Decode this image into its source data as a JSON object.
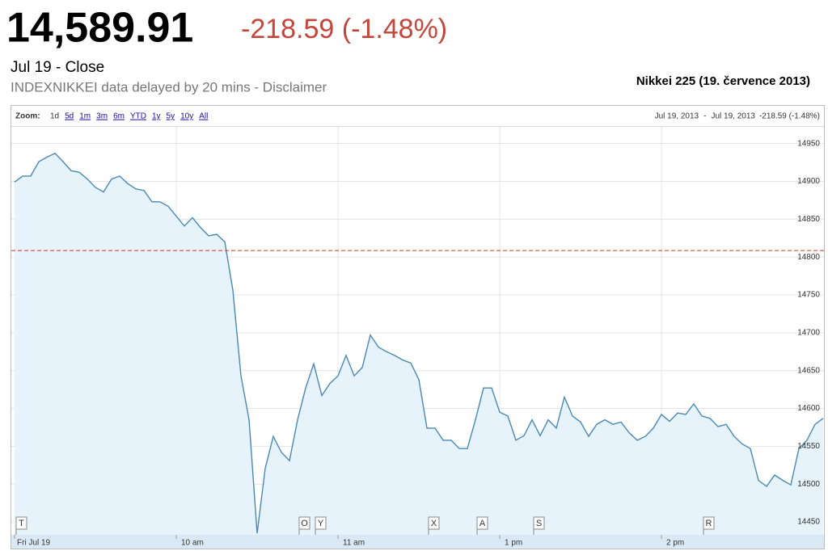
{
  "quote": {
    "price": "14,589.91",
    "change": "-218.59 (-1.48%)",
    "date": "Jul 19 - Close",
    "delay": "INDEXNIKKEI data delayed by 20 mins - Disclaimer",
    "title": "Nikkei 225 (19. července 2013)"
  },
  "chart_data": {
    "type": "area",
    "zoom": {
      "label": "Zoom:",
      "options": [
        "1d",
        "5d",
        "1m",
        "3m",
        "6m",
        "YTD",
        "1y",
        "5y",
        "10y",
        "All"
      ]
    },
    "range": {
      "from": "Jul 19, 2013",
      "separator": "-",
      "to": "Jul 19, 2013",
      "change": "-218.59 (-1.48%)"
    },
    "categories": [
      "Fri Jul 19",
      null,
      null,
      null,
      null,
      null,
      null,
      null,
      null,
      null,
      null,
      null,
      null,
      null,
      null,
      null,
      null,
      null,
      null,
      null,
      "10 am",
      null,
      null,
      null,
      null,
      null,
      null,
      null,
      null,
      null,
      null,
      null,
      null,
      null,
      null,
      null,
      null,
      null,
      null,
      null,
      "11 am",
      null,
      null,
      null,
      null,
      null,
      null,
      null,
      null,
      null,
      null,
      null,
      null,
      null,
      null,
      null,
      null,
      null,
      null,
      null,
      "1 pm",
      null,
      null,
      null,
      null,
      null,
      null,
      null,
      null,
      null,
      null,
      null,
      null,
      null,
      null,
      null,
      null,
      null,
      null,
      null,
      "2 pm",
      null,
      null,
      null,
      null,
      null,
      null,
      null,
      null,
      null,
      null,
      null,
      null,
      null,
      null,
      null,
      null,
      null,
      null,
      null,
      null
    ],
    "series": [
      {
        "color": "#4a88b4",
        "fill": "#e6f3fb",
        "values": [
          14899,
          14907,
          14907,
          14926,
          14932,
          14937,
          14926,
          14914,
          14912,
          14903,
          14892,
          14886,
          14903,
          14907,
          14897,
          14890,
          14888,
          14873,
          14873,
          14867,
          14854,
          14841,
          14852,
          14839,
          14828,
          14830,
          14820,
          14756,
          14643,
          14585,
          14435,
          14521,
          14563,
          14542,
          14531,
          14585,
          14627,
          14659,
          14617,
          14633,
          14643,
          14670,
          14643,
          14654,
          14697,
          14681,
          14675,
          14670,
          14664,
          14660,
          14638,
          14574,
          14574,
          14558,
          14558,
          14547,
          14547,
          14585,
          14627,
          14627,
          14595,
          14590,
          14558,
          14564,
          14585,
          14564,
          14585,
          14574,
          14615,
          14590,
          14582,
          14563,
          14579,
          14585,
          14579,
          14582,
          14568,
          14558,
          14563,
          14574,
          14592,
          14583,
          14594,
          14592,
          14606,
          14590,
          14587,
          14576,
          14579,
          14563,
          14553,
          14547,
          14505,
          14497,
          14512,
          14505,
          14499,
          14547,
          14558,
          14579,
          14587
        ]
      }
    ],
    "previous_close": 14808.5,
    "previous_close_color": "#c0392b",
    "ylim": [
      14433,
      14972
    ],
    "yticks": [
      14450,
      14500,
      14550,
      14600,
      14650,
      14700,
      14750,
      14800,
      14850,
      14900,
      14950
    ],
    "grid": true,
    "flags": [
      {
        "label": "T",
        "index": 0
      },
      {
        "label": "O",
        "index": 35
      },
      {
        "label": "Y",
        "index": 37
      },
      {
        "label": "X",
        "index": 51
      },
      {
        "label": "A",
        "index": 57
      },
      {
        "label": "S",
        "index": 64
      },
      {
        "label": "R",
        "index": 85
      }
    ]
  }
}
